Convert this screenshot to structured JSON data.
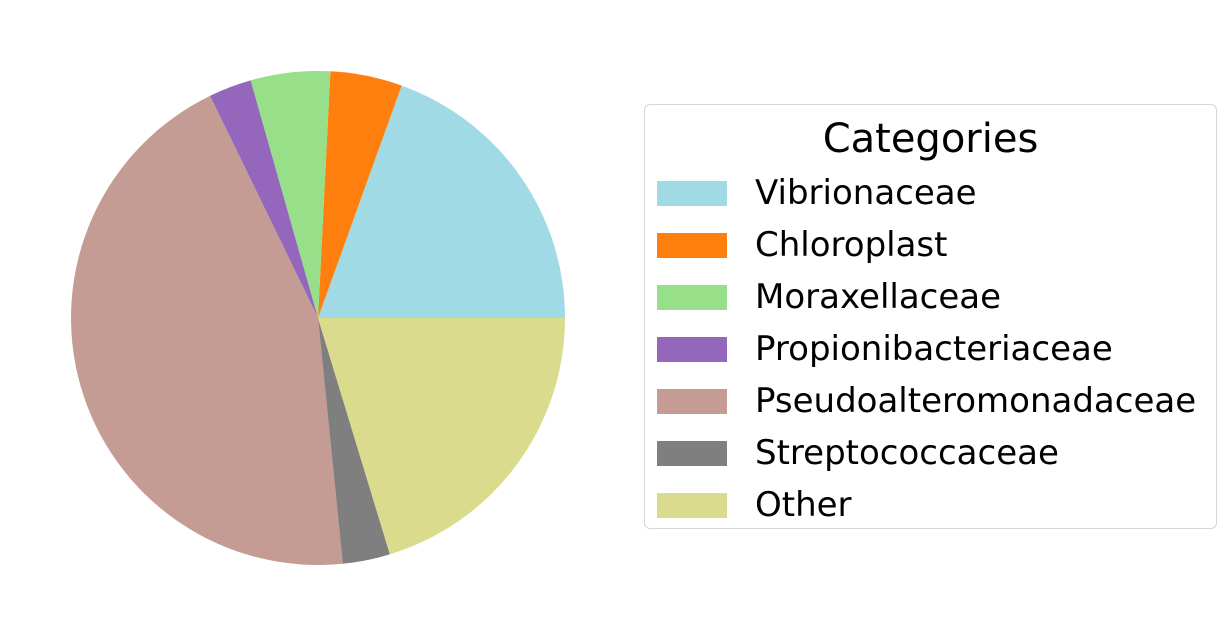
{
  "chart_data": {
    "type": "pie",
    "title": "",
    "start_angle_deg": 0,
    "direction": "counterclockwise",
    "legend": {
      "title": "Categories",
      "placement": "right"
    },
    "slices": [
      {
        "label": "Vibrionaceae",
        "value": 19.5,
        "color": "#9fdae5"
      },
      {
        "label": "Chloroplast",
        "value": 4.7,
        "color": "#ff7f0e"
      },
      {
        "label": "Moraxellaceae",
        "value": 5.2,
        "color": "#98df8a"
      },
      {
        "label": "Propionibacteriaceae",
        "value": 2.8,
        "color": "#9467bd"
      },
      {
        "label": "Pseudoalteromonadaceae",
        "value": 44.4,
        "color": "#c49c94"
      },
      {
        "label": "Streptococcaceae",
        "value": 3.1,
        "color": "#7f7f7f"
      },
      {
        "label": "Other",
        "value": 20.3,
        "color": "#dbdb8d"
      }
    ]
  }
}
